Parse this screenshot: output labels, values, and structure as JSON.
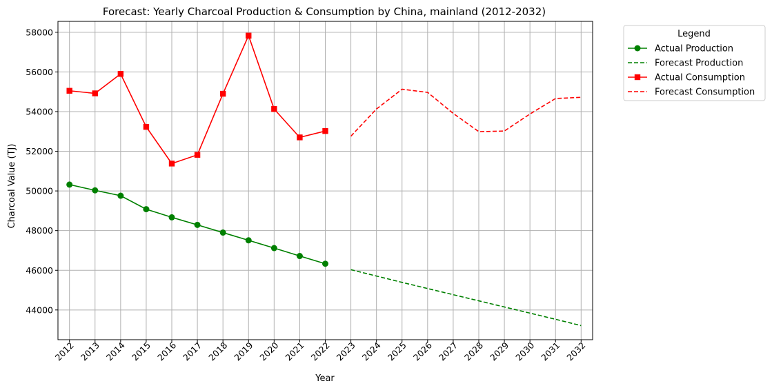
{
  "chart_data": {
    "type": "line",
    "title": "Forecast: Yearly Charcoal Production & Consumption by China, mainland (2012-2032)",
    "xlabel": "Year",
    "ylabel": "Charcoal Value (TJ)",
    "x": [
      2012,
      2013,
      2014,
      2015,
      2016,
      2017,
      2018,
      2019,
      2020,
      2021,
      2022,
      2023,
      2024,
      2025,
      2026,
      2027,
      2028,
      2029,
      2030,
      2031,
      2032
    ],
    "xlim": [
      2011.55,
      2032.45
    ],
    "ylim": [
      42500,
      58550
    ],
    "yticks": [
      44000,
      46000,
      48000,
      50000,
      52000,
      54000,
      56000,
      58000
    ],
    "grid": true,
    "legend": {
      "title": "Legend",
      "placement": "outside-top-right"
    },
    "series": [
      {
        "name": "Actual Production",
        "color": "#008000",
        "style": "solid",
        "marker": "circle",
        "x": [
          2012,
          2013,
          2014,
          2015,
          2016,
          2017,
          2018,
          2019,
          2020,
          2021,
          2022
        ],
        "y": [
          50320,
          50030,
          49760,
          49080,
          48670,
          48290,
          47900,
          47510,
          47120,
          46720,
          46330
        ]
      },
      {
        "name": "Forecast Production",
        "color": "#008000",
        "style": "dashed",
        "marker": "none",
        "x": [
          2023,
          2024,
          2025,
          2026,
          2027,
          2028,
          2029,
          2030,
          2031,
          2032
        ],
        "y": [
          46030,
          45710,
          45390,
          45080,
          44770,
          44460,
          44150,
          43840,
          43530,
          43210
        ]
      },
      {
        "name": "Actual Consumption",
        "color": "#ff0000",
        "style": "solid",
        "marker": "square",
        "x": [
          2012,
          2013,
          2014,
          2015,
          2016,
          2017,
          2018,
          2019,
          2020,
          2021,
          2022
        ],
        "y": [
          55050,
          54920,
          55900,
          53230,
          51380,
          51820,
          54900,
          57830,
          54130,
          52700,
          53020
        ]
      },
      {
        "name": "Forecast Consumption",
        "color": "#ff0000",
        "style": "dashed",
        "marker": "none",
        "x": [
          2023,
          2024,
          2025,
          2026,
          2027,
          2028,
          2029,
          2030,
          2031,
          2032
        ],
        "y": [
          52760,
          54130,
          55130,
          54970,
          53910,
          52990,
          53020,
          53880,
          54660,
          54720
        ]
      }
    ]
  }
}
